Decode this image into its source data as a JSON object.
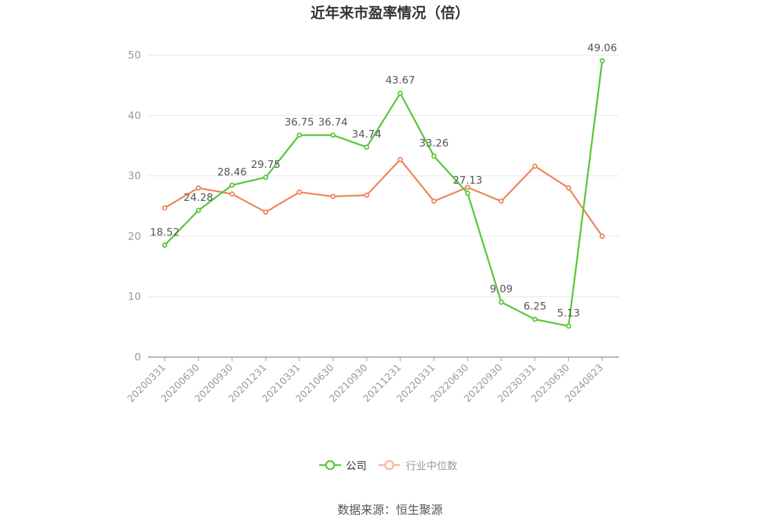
{
  "chart_data": {
    "type": "line",
    "title": "近年来市盈率情况（倍）",
    "x": [
      "20200331",
      "20200630",
      "20200930",
      "20201231",
      "20210331",
      "20210630",
      "20210930",
      "20211231",
      "20220331",
      "20220630",
      "20220930",
      "20230331",
      "20230630",
      "20240823"
    ],
    "series": [
      {
        "name": "公司",
        "color": "#5cc73c",
        "values": [
          18.52,
          24.28,
          28.46,
          29.75,
          36.75,
          36.74,
          34.74,
          43.67,
          33.26,
          27.13,
          9.09,
          6.25,
          5.13,
          49.06
        ],
        "labels": [
          "18.52",
          "24.28",
          "28.46",
          "29.75",
          "36.75",
          "36.74",
          "34.74",
          "43.67",
          "33.26",
          "27.13",
          "9.09",
          "6.25",
          "5.13",
          "49.06"
        ]
      },
      {
        "name": "行业中位数",
        "color": "#f0875a",
        "values": [
          24.7,
          28.0,
          27.0,
          24.0,
          27.3,
          26.6,
          26.8,
          32.7,
          25.8,
          28.1,
          25.8,
          31.6,
          28.0,
          20.0
        ]
      }
    ],
    "yticks": [
      0,
      10,
      20,
      30,
      40,
      50
    ],
    "ylim": [
      0,
      50
    ],
    "grid": true,
    "legend_position": "bottom"
  },
  "source_text": "数据来源：恒生聚源"
}
